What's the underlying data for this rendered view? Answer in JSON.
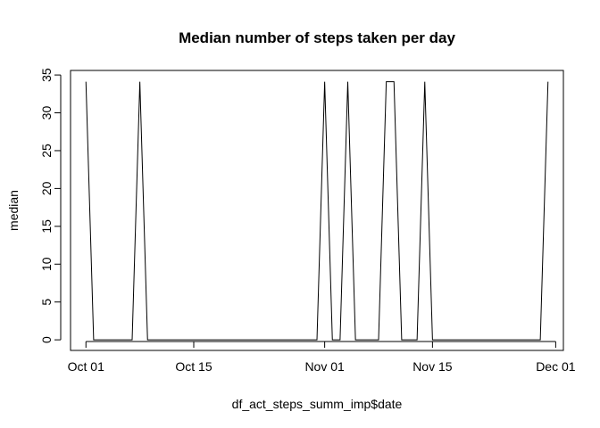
{
  "chart_data": {
    "type": "line",
    "title": "Median number of steps taken per day",
    "xlabel": "df_act_steps_summ_imp$date",
    "ylabel": "median",
    "x_ticks": [
      "Oct 01",
      "Oct 15",
      "Nov 01",
      "Nov 15",
      "Dec 01"
    ],
    "y_ticks": [
      "0",
      "5",
      "10",
      "15",
      "20",
      "25",
      "30",
      "35"
    ],
    "xlim": [
      "2012-09-29",
      "2012-12-02"
    ],
    "ylim": [
      -1.4,
      35.6
    ],
    "grid": false,
    "legend": "none",
    "line_color": "#000000",
    "series": [
      {
        "x": [
          "2012-10-01",
          "2012-10-02",
          "2012-10-03",
          "2012-10-04",
          "2012-10-05",
          "2012-10-06",
          "2012-10-07",
          "2012-10-08",
          "2012-10-09",
          "2012-10-10",
          "2012-10-11",
          "2012-10-12",
          "2012-10-13",
          "2012-10-14",
          "2012-10-15",
          "2012-10-16",
          "2012-10-17",
          "2012-10-18",
          "2012-10-19",
          "2012-10-20",
          "2012-10-21",
          "2012-10-22",
          "2012-10-23",
          "2012-10-24",
          "2012-10-25",
          "2012-10-26",
          "2012-10-27",
          "2012-10-28",
          "2012-10-29",
          "2012-10-30",
          "2012-10-31",
          "2012-11-01",
          "2012-11-02",
          "2012-11-03",
          "2012-11-04",
          "2012-11-05",
          "2012-11-06",
          "2012-11-07",
          "2012-11-08",
          "2012-11-09",
          "2012-11-10",
          "2012-11-11",
          "2012-11-12",
          "2012-11-13",
          "2012-11-14",
          "2012-11-15",
          "2012-11-16",
          "2012-11-17",
          "2012-11-18",
          "2012-11-19",
          "2012-11-20",
          "2012-11-21",
          "2012-11-22",
          "2012-11-23",
          "2012-11-24",
          "2012-11-25",
          "2012-11-26",
          "2012-11-27",
          "2012-11-28",
          "2012-11-29",
          "2012-11-30"
        ],
        "y": [
          34.11,
          0,
          0,
          0,
          0,
          0,
          0,
          34.11,
          0,
          0,
          0,
          0,
          0,
          0,
          0,
          0,
          0,
          0,
          0,
          0,
          0,
          0,
          0,
          0,
          0,
          0,
          0,
          0,
          0,
          0,
          0,
          34.11,
          0,
          0,
          34.11,
          0,
          0,
          0,
          0,
          34.11,
          34.11,
          0,
          0,
          0,
          34.11,
          0,
          0,
          0,
          0,
          0,
          0,
          0,
          0,
          0,
          0,
          0,
          0,
          0,
          0,
          0,
          34.11
        ]
      }
    ]
  }
}
